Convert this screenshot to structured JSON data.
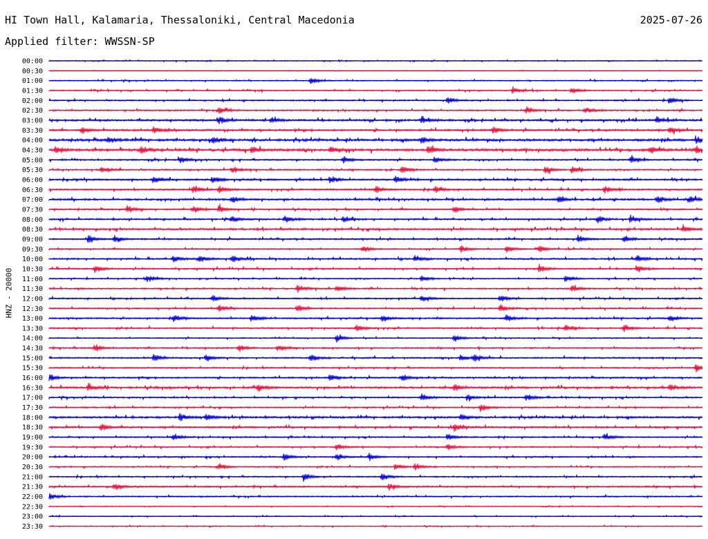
{
  "header": {
    "station": "HI Town Hall, Kalamaria, Thessaloniki, Central Macedonia",
    "date": "2025-07-26",
    "filter": "Applied filter: WWSSN-SP"
  },
  "chart_data": {
    "type": "line",
    "ylabel": "HNZ - 20000",
    "row_labels": [
      "00:00",
      "00:30",
      "01:00",
      "01:30",
      "02:00",
      "02:30",
      "03:00",
      "03:30",
      "04:00",
      "04:30",
      "05:00",
      "05:30",
      "06:00",
      "06:30",
      "07:00",
      "07:30",
      "08:00",
      "08:30",
      "09:00",
      "09:30",
      "10:00",
      "10:30",
      "11:00",
      "11:30",
      "12:00",
      "12:30",
      "13:00",
      "13:30",
      "14:00",
      "14:30",
      "15:00",
      "15:30",
      "16:00",
      "16:30",
      "17:00",
      "17:30",
      "18:00",
      "18:30",
      "19:00",
      "19:30",
      "20:00",
      "20:30",
      "21:00",
      "21:30",
      "22:00",
      "22:30",
      "23:00",
      "23:30"
    ],
    "trace_colors": [
      "#0000cc",
      "#e0103a"
    ],
    "noise_levels": [
      0.6,
      0.3,
      0.7,
      0.8,
      0.9,
      1.0,
      1.3,
      1.2,
      1.6,
      1.7,
      1.0,
      1.0,
      1.2,
      1.1,
      1.3,
      1.0,
      1.1,
      1.3,
      1.0,
      0.8,
      1.1,
      1.0,
      0.8,
      1.0,
      0.9,
      0.9,
      1.0,
      1.0,
      0.8,
      0.9,
      1.0,
      0.9,
      1.0,
      1.4,
      1.0,
      0.9,
      1.3,
      1.2,
      0.9,
      0.9,
      0.9,
      0.8,
      0.9,
      1.0,
      0.9,
      0.5,
      0.6,
      0.6
    ],
    "events": {
      "01:00": [
        0.4
      ],
      "01:30": [
        0.8,
        0.71
      ],
      "02:00": [
        0.61,
        0.95
      ],
      "02:30": [
        0.26,
        0.73,
        0.82
      ],
      "03:00": [
        0.26,
        0.34,
        0.57,
        0.93
      ],
      "03:30": [
        0.05,
        0.16,
        0.68,
        0.95
      ],
      "04:00": [
        0.09,
        0.25,
        0.57,
        0.99
      ],
      "04:30": [
        0.01,
        0.14,
        0.31,
        0.43,
        0.58,
        0.92,
        0.99
      ],
      "05:00": [
        0.2,
        0.45,
        0.59,
        0.89
      ],
      "05:30": [
        0.08,
        0.28,
        0.54,
        0.76,
        0.8
      ],
      "06:00": [
        0.16,
        0.25,
        0.43,
        0.53
      ],
      "06:30": [
        0.22,
        0.26,
        0.5,
        0.59,
        0.85
      ],
      "07:00": [
        0.28,
        0.78,
        0.93,
        0.98
      ],
      "07:30": [
        0.12,
        0.22,
        0.26,
        0.62
      ],
      "08:00": [
        0.28,
        0.36,
        0.45,
        0.84,
        0.89
      ],
      "08:30": [
        0.97
      ],
      "09:00": [
        0.06,
        0.1,
        0.81,
        0.88
      ],
      "09:30": [
        0.48,
        0.63,
        0.7,
        0.75
      ],
      "10:00": [
        0.19,
        0.23,
        0.28,
        0.56,
        0.9
      ],
      "10:30": [
        0.07,
        0.75,
        0.9
      ],
      "11:00": [
        0.15,
        0.57,
        0.79
      ],
      "11:30": [
        0.38,
        0.44,
        0.8
      ],
      "12:00": [
        0.25,
        0.57,
        0.69
      ],
      "12:30": [
        0.26,
        0.38,
        0.69
      ],
      "13:00": [
        0.19,
        0.31,
        0.51,
        0.7,
        0.95
      ],
      "13:30": [
        0.47,
        0.79,
        0.88
      ],
      "14:00": [
        0.44,
        0.62
      ],
      "14:30": [
        0.07,
        0.29,
        0.35
      ],
      "15:00": [
        0.16,
        0.24,
        0.4,
        0.63,
        0.65
      ],
      "15:30": [
        0.99
      ],
      "16:00": [
        0.0,
        0.43,
        0.54
      ],
      "16:30": [
        0.06,
        0.32,
        0.62,
        0.95
      ],
      "17:00": [
        0.57,
        0.64,
        0.73
      ],
      "17:30": [
        0.66
      ],
      "18:00": [
        0.2,
        0.24,
        0.63
      ],
      "18:30": [
        0.08,
        0.62
      ],
      "19:00": [
        0.19,
        0.61,
        0.85
      ],
      "19:30": [
        0.44,
        0.61
      ],
      "20:00": [
        0.36,
        0.44,
        0.49
      ],
      "20:30": [
        0.26,
        0.53,
        0.56
      ],
      "21:00": [
        0.39,
        0.51
      ],
      "21:30": [
        0.1,
        0.52
      ],
      "22:00": [
        0.0
      ]
    },
    "grid": false
  }
}
